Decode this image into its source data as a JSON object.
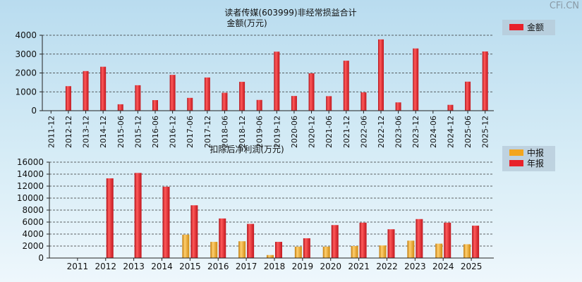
{
  "watermark": "CFi.CN",
  "colors": {
    "annual": "#e8212a",
    "interim": "#f3a51d",
    "background": "#c9e6f3"
  },
  "chart_data": [
    {
      "type": "bar",
      "title": "读者传媒(603999)非经常损益合计",
      "subtitle": "金额(万元)",
      "ylim": [
        0,
        4000
      ],
      "yticks": [
        0,
        1000,
        2000,
        3000,
        4000
      ],
      "grid": true,
      "legend_position": "top-right",
      "categories": [
        "2011-12",
        "2012-12",
        "2013-12",
        "2014-12",
        "2015-06",
        "2015-12",
        "2016-06",
        "2016-12",
        "2017-06",
        "2017-12",
        "2018-06",
        "2018-12",
        "2019-06",
        "2019-12",
        "2020-06",
        "2020-12",
        "2021-06",
        "2021-12",
        "2022-06",
        "2022-12",
        "2023-06",
        "2023-12",
        "2024-06",
        "2024-12",
        "2025-06",
        "2025-12"
      ],
      "series": [
        {
          "name": "金额",
          "color": "#e8212a",
          "values": [
            0,
            1300,
            2100,
            2330,
            340,
            1350,
            560,
            1900,
            680,
            1760,
            950,
            1530,
            570,
            3130,
            780,
            1980,
            770,
            2650,
            970,
            3780,
            440,
            3300,
            0,
            310,
            1540,
            3140
          ]
        }
      ]
    },
    {
      "type": "bar",
      "title": "扣除后净利润(万元)",
      "ylim": [
        0,
        16000
      ],
      "yticks": [
        0,
        2000,
        4000,
        6000,
        8000,
        10000,
        12000,
        14000,
        16000
      ],
      "grid": true,
      "legend_position": "top-right",
      "categories": [
        "2011",
        "2012",
        "2013",
        "2014",
        "2015",
        "2016",
        "2017",
        "2018",
        "2019",
        "2020",
        "2021",
        "2022",
        "2023",
        "2024",
        "2025"
      ],
      "series": [
        {
          "name": "中报",
          "color": "#f3a51d",
          "values": [
            0,
            0,
            0,
            0,
            3900,
            2700,
            2800,
            500,
            1900,
            1900,
            2000,
            2100,
            2900,
            2400,
            2300
          ]
        },
        {
          "name": "年报",
          "color": "#e8212a",
          "values": [
            0,
            13300,
            14200,
            11900,
            8800,
            6600,
            5700,
            2700,
            3300,
            5500,
            5900,
            4800,
            6500,
            5900,
            5400
          ]
        }
      ]
    }
  ]
}
